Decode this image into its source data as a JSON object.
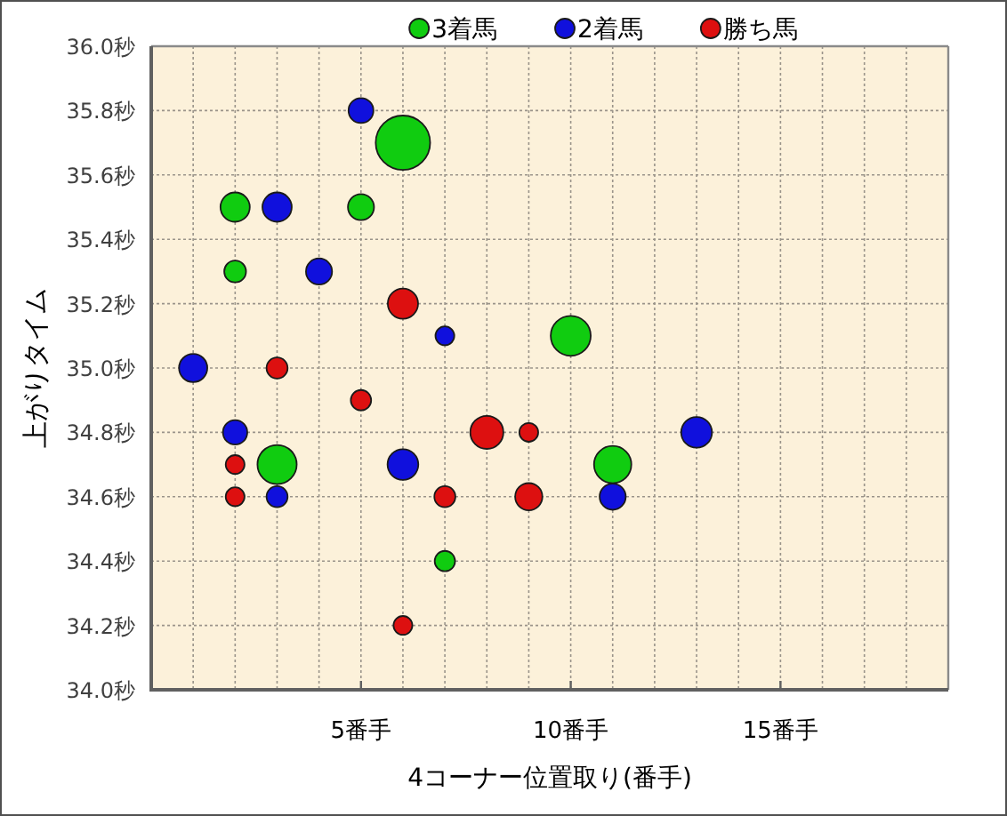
{
  "chart_data": {
    "type": "bubble",
    "xlabel": "4コーナー位置取り(番手)",
    "ylabel": "上がりタイム",
    "xlim": [
      0,
      19
    ],
    "xticks": [
      {
        "value": 1,
        "label": null
      },
      {
        "value": 2,
        "label": null
      },
      {
        "value": 3,
        "label": null
      },
      {
        "value": 4,
        "label": null
      },
      {
        "value": 5,
        "label": "5番手"
      },
      {
        "value": 6,
        "label": null
      },
      {
        "value": 7,
        "label": null
      },
      {
        "value": 8,
        "label": null
      },
      {
        "value": 9,
        "label": null
      },
      {
        "value": 10,
        "label": "10番手"
      },
      {
        "value": 11,
        "label": null
      },
      {
        "value": 12,
        "label": null
      },
      {
        "value": 13,
        "label": null
      },
      {
        "value": 14,
        "label": null
      },
      {
        "value": 15,
        "label": "15番手"
      },
      {
        "value": 16,
        "label": null
      },
      {
        "value": 17,
        "label": null
      },
      {
        "value": 18,
        "label": null
      }
    ],
    "ylim": [
      34.0,
      36.0
    ],
    "yticks": [
      {
        "value": 34.0,
        "label": "34.0秒"
      },
      {
        "value": 34.2,
        "label": "34.2秒"
      },
      {
        "value": 34.4,
        "label": "34.4秒"
      },
      {
        "value": 34.6,
        "label": "34.6秒"
      },
      {
        "value": 34.8,
        "label": "34.8秒"
      },
      {
        "value": 35.0,
        "label": "35.0秒"
      },
      {
        "value": 35.2,
        "label": "35.2秒"
      },
      {
        "value": 35.4,
        "label": "35.4秒"
      },
      {
        "value": 35.6,
        "label": "35.6秒"
      },
      {
        "value": 35.8,
        "label": "35.8秒"
      },
      {
        "value": 36.0,
        "label": "36.0秒"
      }
    ],
    "grid": true,
    "legend": "top",
    "marker": "circle",
    "series": [
      {
        "name": "3着馬",
        "color": "#10cc10",
        "x": [
          6,
          2,
          5,
          2,
          10,
          3,
          11,
          7
        ],
        "values": [
          35.7,
          35.5,
          35.5,
          35.3,
          35.1,
          34.7,
          34.7,
          34.4
        ],
        "sizes": [
          1,
          0.29,
          0.23,
          0.16,
          0.54,
          0.52,
          0.47,
          0.14
        ]
      },
      {
        "name": "2着馬",
        "color": "#1010dd",
        "x": [
          5,
          3,
          4,
          7,
          1,
          2,
          6,
          3,
          13,
          11
        ],
        "values": [
          35.8,
          35.5,
          35.3,
          35.1,
          35.0,
          34.8,
          34.7,
          34.6,
          34.8,
          34.6
        ],
        "sizes": [
          0.21,
          0.29,
          0.23,
          0.12,
          0.27,
          0.2,
          0.32,
          0.15,
          0.32,
          0.23
        ]
      },
      {
        "name": "勝ち馬",
        "color": "#dd1010",
        "x": [
          6,
          3,
          5,
          8,
          9,
          2,
          2,
          7,
          9,
          6
        ],
        "values": [
          35.2,
          35.0,
          34.9,
          34.8,
          34.8,
          34.7,
          34.6,
          34.6,
          34.6,
          34.2
        ],
        "sizes": [
          0.31,
          0.15,
          0.14,
          0.37,
          0.12,
          0.12,
          0.12,
          0.15,
          0.25,
          0.12
        ]
      }
    ]
  }
}
